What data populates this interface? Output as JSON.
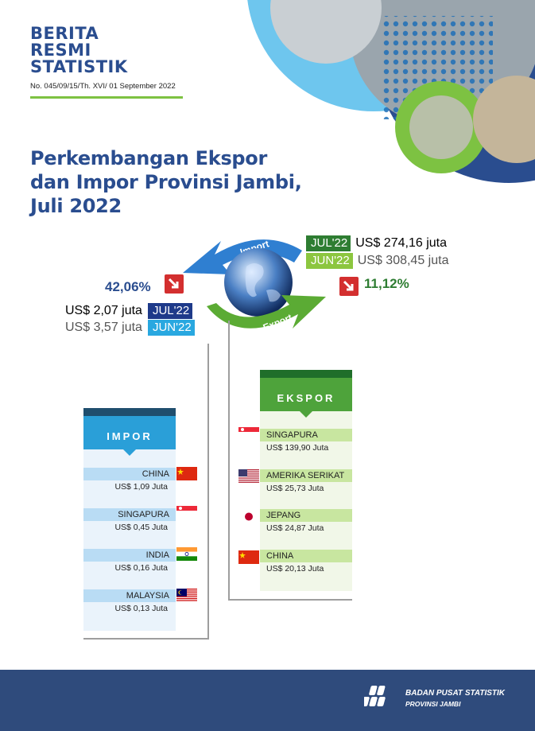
{
  "header": {
    "brand_lines": [
      "BERITA",
      "RESMI",
      "STATISTIK"
    ],
    "release_number": "No. 045/09/15/Th. XVI/ 01 September 2022"
  },
  "title_lines": [
    "Perkembangan Ekspor",
    "dan Impor Provinsi Jambi,",
    "Juli 2022"
  ],
  "globe": {
    "import_label": "Import",
    "export_label": "Export"
  },
  "import_summary": {
    "change_pct": "42,06%",
    "jul": {
      "amount": "US$ 2,07 juta",
      "tag": "JUL'22"
    },
    "jun": {
      "amount": "US$  3,57 juta",
      "tag": "JUN'22"
    }
  },
  "export_summary": {
    "change_pct": "11,12%",
    "jul": {
      "tag": "JUL'22",
      "amount": "US$  274,16 juta"
    },
    "jun": {
      "tag": "JUN'22",
      "amount": "US$ 308,45 juta"
    }
  },
  "impor_panel": {
    "heading": "IMPOR",
    "items": [
      {
        "country": "CHINA",
        "value": "US$ 1,09 Juta",
        "flag": "china-flag"
      },
      {
        "country": "SINGAPURA",
        "value": "US$ 0,45 Juta",
        "flag": "singapore-flag"
      },
      {
        "country": "INDIA",
        "value": "US$ 0,16 Juta",
        "flag": "india-flag"
      },
      {
        "country": "MALAYSIA",
        "value": "US$ 0,13 Juta",
        "flag": "malaysia-flag"
      }
    ]
  },
  "ekspor_panel": {
    "heading": "EKSPOR",
    "items": [
      {
        "country": "SINGAPURA",
        "value": "US$ 139,90 Juta",
        "flag": "singapore-flag"
      },
      {
        "country": "AMERIKA SERIKAT",
        "value": "US$ 25,73 Juta",
        "flag": "usa-flag"
      },
      {
        "country": "JEPANG",
        "value": "US$ 24,87 Juta",
        "flag": "japan-flag"
      },
      {
        "country": "CHINA",
        "value": "US$ 20,13 Juta",
        "flag": "china-flag"
      }
    ]
  },
  "footer": {
    "org_name": "BADAN PUSAT STATISTIK",
    "org_sub": "PROVINSI JAMBI"
  },
  "colors": {
    "brand_blue": "#2a4d8f",
    "accent_green": "#7dc242",
    "down_red": "#d32f2f",
    "footer_bg": "#2f4b7c"
  }
}
